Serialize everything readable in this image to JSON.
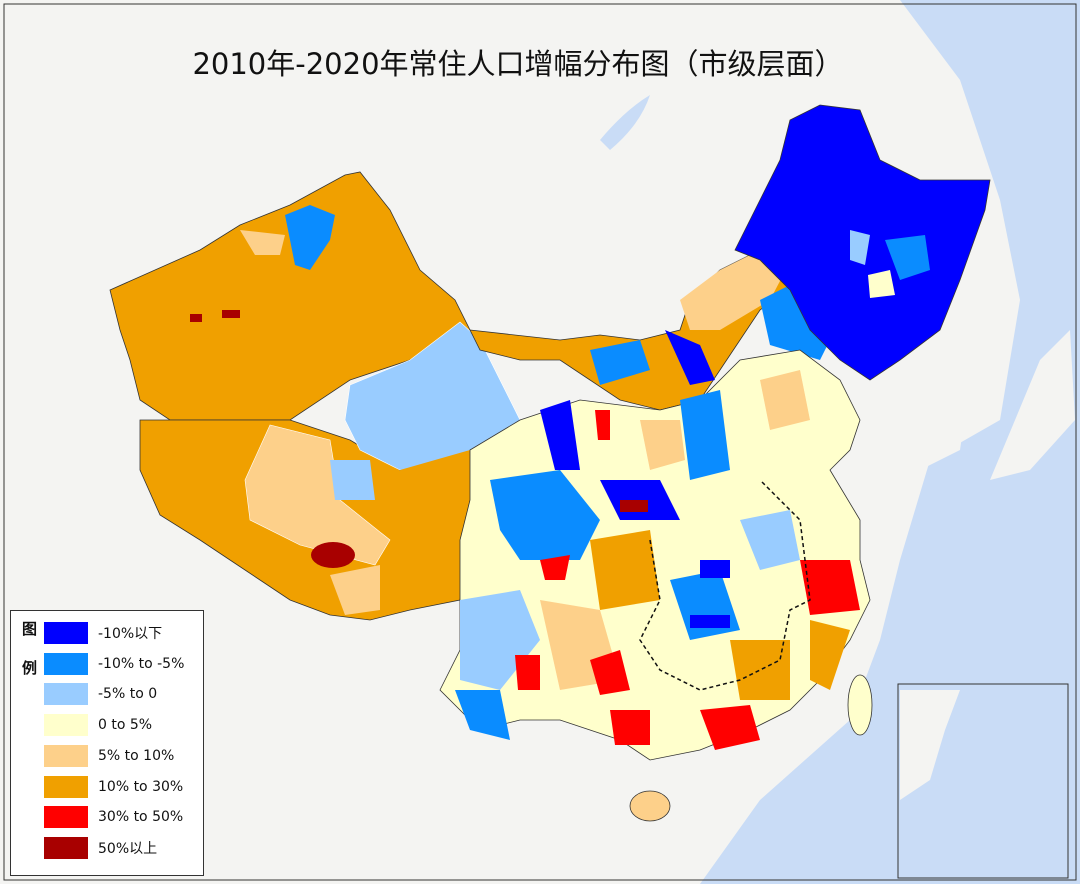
{
  "title": "2010年-2020年常住人口增幅分布图（市级层面）",
  "legend": {
    "title": "图例",
    "items": [
      {
        "label": "-10%以下",
        "color": "#0000ff"
      },
      {
        "label": "-10% to -5%",
        "color": "#0a8cff"
      },
      {
        "label": "-5% to 0",
        "color": "#99ccff"
      },
      {
        "label": "0 to 5%",
        "color": "#ffffcc"
      },
      {
        "label": "5% to 10%",
        "color": "#fdd08a"
      },
      {
        "label": "10% to 30%",
        "color": "#f0a000"
      },
      {
        "label": "30% to 50%",
        "color": "#ff0000"
      },
      {
        "label": "50%以上",
        "color": "#a80000"
      }
    ]
  }
}
